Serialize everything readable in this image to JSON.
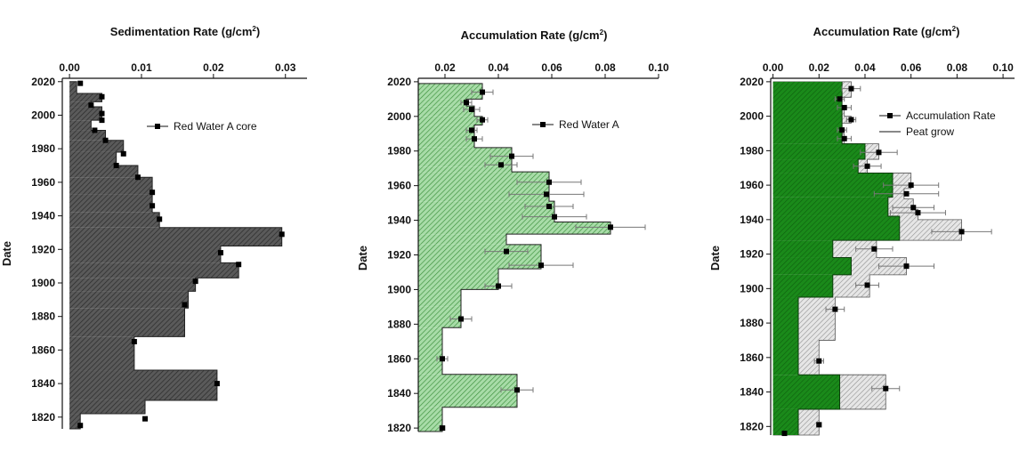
{
  "chart_data": [
    {
      "type": "bar",
      "orientation": "horizontal-step",
      "title": "Sedimentation Rate (g/cm",
      "title_sup": "2",
      "title_end": ")",
      "ylabel": "Date",
      "xlim": [
        -0.001,
        0.033
      ],
      "ylim": [
        1813,
        2022
      ],
      "xticks": [
        "0.00",
        "0.01",
        "0.02",
        "0.03"
      ],
      "xtick_values": [
        0,
        0.01,
        0.02,
        0.03
      ],
      "yticks": [
        "2020",
        "2000",
        "1980",
        "1960",
        "1940",
        "1920",
        "1900",
        "1880",
        "1860",
        "1840",
        "1820"
      ],
      "ytick_values": [
        2020,
        2000,
        1980,
        1960,
        1940,
        1920,
        1900,
        1880,
        1860,
        1840,
        1820
      ],
      "fill": "#5a5a5a",
      "x_edge": 0.0,
      "steps": [
        {
          "top": 2020,
          "bottom": 2013,
          "value": 0.001
        },
        {
          "top": 2013,
          "bottom": 2008,
          "value": 0.0045
        },
        {
          "top": 2008,
          "bottom": 2005,
          "value": 0.003
        },
        {
          "top": 2005,
          "bottom": 1997,
          "value": 0.0045
        },
        {
          "top": 1997,
          "bottom": 1991,
          "value": 0.003
        },
        {
          "top": 1991,
          "bottom": 1985,
          "value": 0.005
        },
        {
          "top": 1985,
          "bottom": 1978,
          "value": 0.0075
        },
        {
          "top": 1978,
          "bottom": 1970,
          "value": 0.0065
        },
        {
          "top": 1970,
          "bottom": 1963,
          "value": 0.0095
        },
        {
          "top": 1963,
          "bottom": 1953,
          "value": 0.0115
        },
        {
          "top": 1953,
          "bottom": 1942,
          "value": 0.0115
        },
        {
          "top": 1942,
          "bottom": 1933,
          "value": 0.0125
        },
        {
          "top": 1933,
          "bottom": 1922,
          "value": 0.0295
        },
        {
          "top": 1922,
          "bottom": 1912,
          "value": 0.021
        },
        {
          "top": 1912,
          "bottom": 1903,
          "value": 0.0235
        },
        {
          "top": 1903,
          "bottom": 1895,
          "value": 0.0175
        },
        {
          "top": 1895,
          "bottom": 1885,
          "value": 0.0165
        },
        {
          "top": 1885,
          "bottom": 1868,
          "value": 0.016
        },
        {
          "top": 1868,
          "bottom": 1848,
          "value": 0.009
        },
        {
          "top": 1848,
          "bottom": 1830,
          "value": 0.0205
        },
        {
          "top": 1830,
          "bottom": 1822,
          "value": 0.0105
        },
        {
          "top": 1822,
          "bottom": 1813,
          "value": 0.0015
        }
      ],
      "series": [
        {
          "name": "Red Water A core",
          "points": [
            {
              "x": 0.0015,
              "y": 2019
            },
            {
              "x": 0.0045,
              "y": 2011
            },
            {
              "x": 0.003,
              "y": 2006
            },
            {
              "x": 0.0045,
              "y": 2001
            },
            {
              "x": 0.0045,
              "y": 1997
            },
            {
              "x": 0.0035,
              "y": 1991
            },
            {
              "x": 0.005,
              "y": 1985
            },
            {
              "x": 0.0075,
              "y": 1977
            },
            {
              "x": 0.0065,
              "y": 1970
            },
            {
              "x": 0.0095,
              "y": 1963
            },
            {
              "x": 0.0115,
              "y": 1954
            },
            {
              "x": 0.0115,
              "y": 1946
            },
            {
              "x": 0.0125,
              "y": 1938
            },
            {
              "x": 0.0295,
              "y": 1929
            },
            {
              "x": 0.021,
              "y": 1918
            },
            {
              "x": 0.0235,
              "y": 1911
            },
            {
              "x": 0.0175,
              "y": 1901
            },
            {
              "x": 0.016,
              "y": 1887
            },
            {
              "x": 0.009,
              "y": 1865
            },
            {
              "x": 0.0205,
              "y": 1840
            },
            {
              "x": 0.0105,
              "y": 1819
            },
            {
              "x": 0.0015,
              "y": 1815
            }
          ]
        }
      ],
      "legend": {
        "position": "top-right",
        "entries": [
          "Red Water A core"
        ]
      }
    },
    {
      "type": "bar",
      "orientation": "horizontal-step",
      "title": "Accumulation Rate (g/cm",
      "title_sup": "2",
      "title_end": ")",
      "ylabel": "Date",
      "xlim": [
        0.01,
        0.1
      ],
      "ylim": [
        1818,
        2022
      ],
      "xticks": [
        "0.02",
        "0.04",
        "0.06",
        "0.08",
        "0.10"
      ],
      "xtick_values": [
        0.02,
        0.04,
        0.06,
        0.08,
        0.1
      ],
      "yticks": [
        "2020",
        "2000",
        "1980",
        "1960",
        "1940",
        "1920",
        "1900",
        "1880",
        "1860",
        "1840",
        "1820"
      ],
      "ytick_values": [
        2020,
        2000,
        1980,
        1960,
        1940,
        1920,
        1900,
        1880,
        1860,
        1840,
        1820
      ],
      "fill": "#79bf79",
      "x_edge": 0.01,
      "steps": [
        {
          "top": 2019,
          "bottom": 2010,
          "value": 0.034
        },
        {
          "top": 2010,
          "bottom": 2006,
          "value": 0.028
        },
        {
          "top": 2006,
          "bottom": 2000,
          "value": 0.031
        },
        {
          "top": 2000,
          "bottom": 1995,
          "value": 0.034
        },
        {
          "top": 1995,
          "bottom": 1982,
          "value": 0.031
        },
        {
          "top": 1982,
          "bottom": 1971,
          "value": 0.045
        },
        {
          "top": 1971,
          "bottom": 1968,
          "value": 0.045
        },
        {
          "top": 1968,
          "bottom": 1951,
          "value": 0.059
        },
        {
          "top": 1951,
          "bottom": 1939,
          "value": 0.061
        },
        {
          "top": 1939,
          "bottom": 1932,
          "value": 0.082
        },
        {
          "top": 1932,
          "bottom": 1926,
          "value": 0.043
        },
        {
          "top": 1926,
          "bottom": 1912,
          "value": 0.056
        },
        {
          "top": 1912,
          "bottom": 1900,
          "value": 0.04
        },
        {
          "top": 1900,
          "bottom": 1890,
          "value": 0.026
        },
        {
          "top": 1890,
          "bottom": 1878,
          "value": 0.026
        },
        {
          "top": 1878,
          "bottom": 1851,
          "value": 0.019
        },
        {
          "top": 1851,
          "bottom": 1832,
          "value": 0.047
        },
        {
          "top": 1832,
          "bottom": 1818,
          "value": 0.019
        }
      ],
      "series": [
        {
          "name": "Red Water A",
          "points": [
            {
              "x": 0.034,
              "y": 2014,
              "err": 0.004
            },
            {
              "x": 0.028,
              "y": 2008,
              "err": 0.002
            },
            {
              "x": 0.03,
              "y": 2004,
              "err": 0.003
            },
            {
              "x": 0.034,
              "y": 1998,
              "err": 0.002
            },
            {
              "x": 0.03,
              "y": 1992,
              "err": 0.002
            },
            {
              "x": 0.031,
              "y": 1987,
              "err": 0.003
            },
            {
              "x": 0.045,
              "y": 1977,
              "err": 0.008
            },
            {
              "x": 0.041,
              "y": 1972,
              "err": 0.006
            },
            {
              "x": 0.059,
              "y": 1962,
              "err": 0.012
            },
            {
              "x": 0.058,
              "y": 1955,
              "err": 0.014
            },
            {
              "x": 0.059,
              "y": 1948,
              "err": 0.009
            },
            {
              "x": 0.061,
              "y": 1942,
              "err": 0.012
            },
            {
              "x": 0.082,
              "y": 1936,
              "err": 0.013
            },
            {
              "x": 0.043,
              "y": 1922,
              "err": 0.008
            },
            {
              "x": 0.056,
              "y": 1914,
              "err": 0.012
            },
            {
              "x": 0.04,
              "y": 1902,
              "err": 0.005
            },
            {
              "x": 0.026,
              "y": 1883,
              "err": 0.004
            },
            {
              "x": 0.019,
              "y": 1860,
              "err": 0.002
            },
            {
              "x": 0.047,
              "y": 1842,
              "err": 0.006
            },
            {
              "x": 0.019,
              "y": 1820,
              "err": 0.001
            }
          ]
        }
      ],
      "legend": {
        "position": "top-right",
        "entries": [
          "Red Water A"
        ]
      }
    },
    {
      "type": "bar",
      "orientation": "horizontal-step",
      "title": "Accumulation Rate (g/cm",
      "title_sup": "2",
      "title_end": ")",
      "ylabel": "Date",
      "xlim": [
        -0.001,
        0.105
      ],
      "ylim": [
        1815,
        2022
      ],
      "xticks": [
        "0.00",
        "0.02",
        "0.04",
        "0.06",
        "0.08",
        "0.10"
      ],
      "xtick_values": [
        0,
        0.02,
        0.04,
        0.06,
        0.08,
        0.1
      ],
      "yticks": [
        "2020",
        "2000",
        "1980",
        "1960",
        "1940",
        "1920",
        "1900",
        "1880",
        "1860",
        "1840",
        "1820"
      ],
      "ytick_values": [
        2020,
        2000,
        1980,
        1960,
        1940,
        1920,
        1900,
        1880,
        1860,
        1840,
        1820
      ],
      "fill": "#1a8a1a",
      "back_fill": "#cfcfcf",
      "x_edge": 0.0,
      "steps": [
        {
          "top": 2020,
          "bottom": 2011,
          "value": 0.034
        },
        {
          "top": 2011,
          "bottom": 2006,
          "value": 0.029
        },
        {
          "top": 2006,
          "bottom": 2000,
          "value": 0.031
        },
        {
          "top": 2000,
          "bottom": 1996,
          "value": 0.034
        },
        {
          "top": 1996,
          "bottom": 1990,
          "value": 0.03
        },
        {
          "top": 1990,
          "bottom": 1984,
          "value": 0.031
        },
        {
          "top": 1984,
          "bottom": 1975,
          "value": 0.046
        },
        {
          "top": 1975,
          "bottom": 1967,
          "value": 0.041
        },
        {
          "top": 1967,
          "bottom": 1958,
          "value": 0.06
        },
        {
          "top": 1958,
          "bottom": 1952,
          "value": 0.057
        },
        {
          "top": 1952,
          "bottom": 1946,
          "value": 0.061
        },
        {
          "top": 1946,
          "bottom": 1940,
          "value": 0.063
        },
        {
          "top": 1940,
          "bottom": 1928,
          "value": 0.082
        },
        {
          "top": 1928,
          "bottom": 1918,
          "value": 0.045
        },
        {
          "top": 1918,
          "bottom": 1908,
          "value": 0.058
        },
        {
          "top": 1908,
          "bottom": 1895,
          "value": 0.042
        },
        {
          "top": 1895,
          "bottom": 1870,
          "value": 0.027
        },
        {
          "top": 1870,
          "bottom": 1850,
          "value": 0.02
        },
        {
          "top": 1850,
          "bottom": 1830,
          "value": 0.049
        },
        {
          "top": 1830,
          "bottom": 1815,
          "value": 0.02
        }
      ],
      "overlay_steps": [
        {
          "top": 2020,
          "bottom": 1984,
          "value": 0.03
        },
        {
          "top": 1984,
          "bottom": 1975,
          "value": 0.04
        },
        {
          "top": 1975,
          "bottom": 1967,
          "value": 0.037
        },
        {
          "top": 1967,
          "bottom": 1953,
          "value": 0.052
        },
        {
          "top": 1953,
          "bottom": 1942,
          "value": 0.05
        },
        {
          "top": 1942,
          "bottom": 1928,
          "value": 0.055
        },
        {
          "top": 1928,
          "bottom": 1918,
          "value": 0.026
        },
        {
          "top": 1918,
          "bottom": 1908,
          "value": 0.034
        },
        {
          "top": 1908,
          "bottom": 1895,
          "value": 0.026
        },
        {
          "top": 1895,
          "bottom": 1850,
          "value": 0.011
        },
        {
          "top": 1850,
          "bottom": 1830,
          "value": 0.029
        },
        {
          "top": 1830,
          "bottom": 1815,
          "value": 0.011
        }
      ],
      "series": [
        {
          "name": "Accumulation Rate",
          "points": [
            {
              "x": 0.034,
              "y": 2016,
              "err": 0.004
            },
            {
              "x": 0.029,
              "y": 2010,
              "err": 0.002
            },
            {
              "x": 0.031,
              "y": 2005,
              "err": 0.003
            },
            {
              "x": 0.034,
              "y": 1998,
              "err": 0.002
            },
            {
              "x": 0.03,
              "y": 1992,
              "err": 0.002
            },
            {
              "x": 0.031,
              "y": 1987,
              "err": 0.003
            },
            {
              "x": 0.046,
              "y": 1979,
              "err": 0.008
            },
            {
              "x": 0.041,
              "y": 1971,
              "err": 0.006
            },
            {
              "x": 0.06,
              "y": 1960,
              "err": 0.012
            },
            {
              "x": 0.058,
              "y": 1955,
              "err": 0.014
            },
            {
              "x": 0.061,
              "y": 1947,
              "err": 0.009
            },
            {
              "x": 0.063,
              "y": 1944,
              "err": 0.012
            },
            {
              "x": 0.082,
              "y": 1933,
              "err": 0.013
            },
            {
              "x": 0.044,
              "y": 1923,
              "err": 0.008
            },
            {
              "x": 0.058,
              "y": 1913,
              "err": 0.012
            },
            {
              "x": 0.041,
              "y": 1902,
              "err": 0.005
            },
            {
              "x": 0.027,
              "y": 1888,
              "err": 0.004
            },
            {
              "x": 0.02,
              "y": 1858,
              "err": 0.002
            },
            {
              "x": 0.049,
              "y": 1842,
              "err": 0.006
            },
            {
              "x": 0.02,
              "y": 1821,
              "err": 0.001
            },
            {
              "x": 0.005,
              "y": 1816,
              "err": 0
            }
          ]
        }
      ],
      "legend": {
        "position": "top-right",
        "entries": [
          "Accumulation Rate",
          "Peat grow"
        ]
      }
    }
  ]
}
